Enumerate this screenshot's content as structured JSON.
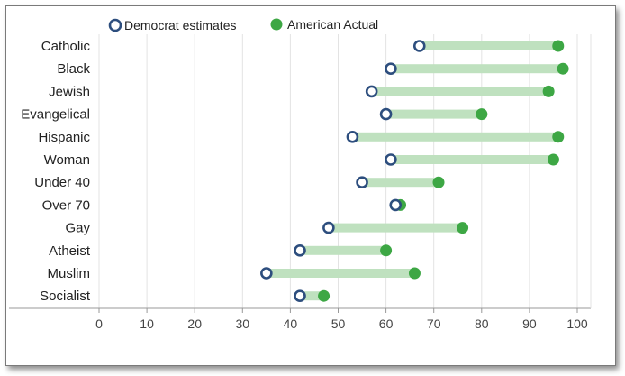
{
  "chart_data": {
    "type": "dumbbell",
    "title": "",
    "xlabel": "",
    "ylabel": "",
    "xlim": [
      0,
      100
    ],
    "x_ticks": [
      0,
      10,
      20,
      30,
      40,
      50,
      60,
      70,
      80,
      90,
      100
    ],
    "grid": true,
    "legend_position": "top-left",
    "categories": [
      "Catholic",
      "Black",
      "Jewish",
      "Evangelical",
      "Hispanic",
      "Woman",
      "Under 40",
      "Over 70",
      "Gay",
      "Atheist",
      "Muslim",
      "Socialist"
    ],
    "series": [
      {
        "name": "Democrat estimates",
        "values": [
          67,
          61,
          57,
          60,
          53,
          61,
          55,
          62,
          48,
          42,
          35,
          42
        ]
      },
      {
        "name": "American Actual",
        "values": [
          96,
          97,
          94,
          80,
          96,
          95,
          71,
          63,
          76,
          60,
          66,
          47
        ]
      }
    ]
  },
  "colors": {
    "democrat": "#2d4e7e",
    "actual": "#3da744",
    "bar": "#bfe1bf",
    "grid": "#e3e3e3",
    "axis": "#999999"
  }
}
